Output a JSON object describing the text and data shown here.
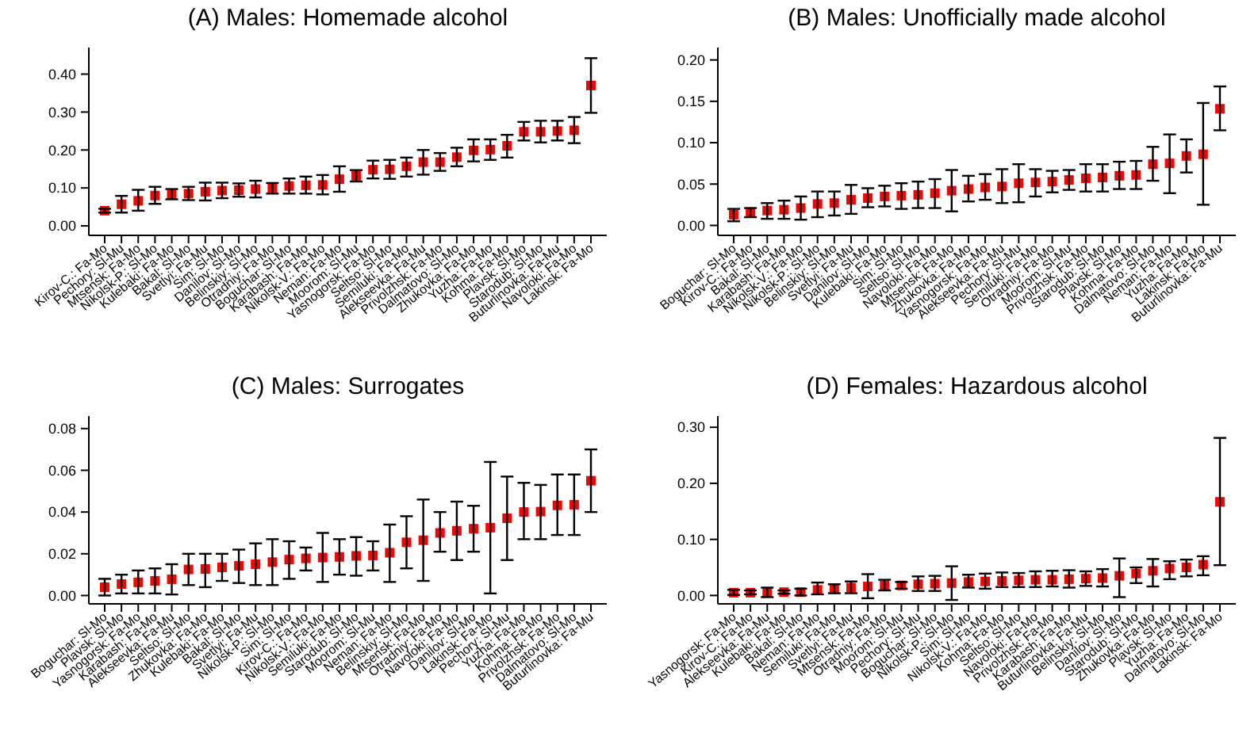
{
  "chart_data": [
    {
      "type": "scatter",
      "title": "(A) Males: Homemade alcohol",
      "marker": "square",
      "color": "#ff0000",
      "categories": [
        "Kirov-C.: Fa-Mo",
        "Pechory: Sl-Mu",
        "Mtsensk: Fa-Mo",
        "Nikolsk-P.: Sl-Mo",
        "Kulebaki: Fa-Mo",
        "Bakal: Sl-Mo",
        "Svetlyi: Fa-Mu",
        "Sim: Sl-Mo",
        "Danilov: Sl-Mo",
        "Belinskiy: Sl-Mo",
        "Otradniy: Fa-Mo",
        "Boguchar: Sl-Mo",
        "Karabash: Fa-Mo",
        "Nikolsk-V.: Fa-Mo",
        "Neman: Fa-Mo",
        "Moorom: Sl-Mu",
        "Yasnogorsk: Fa-Mo",
        "Seltso: Sl-Mo",
        "Semiluki: Fa-Mo",
        "Alekseevka: Fa-Mu",
        "Privolzhsk: Fa-Mo",
        "Dalmatovo: Sl-Mo",
        "Zhukovka: Fa-Mo",
        "Yuzha: Fa-Mo",
        "Kohma: Fa-Mo",
        "Plavsk: Sl-Mo",
        "Starodub: Sl-Mo",
        "Buturlinovka: Fa-Mu",
        "Navoloki: Fa-Mo",
        "Lakinsk: Fa-Mo"
      ],
      "values": [
        0.04,
        0.057,
        0.066,
        0.08,
        0.082,
        0.085,
        0.09,
        0.093,
        0.094,
        0.097,
        0.099,
        0.105,
        0.107,
        0.108,
        0.123,
        0.132,
        0.148,
        0.149,
        0.157,
        0.168,
        0.168,
        0.181,
        0.199,
        0.201,
        0.211,
        0.248,
        0.248,
        0.25,
        0.252,
        0.37
      ],
      "errors": [
        [
          0.035,
          0.045
        ],
        [
          0.035,
          0.079
        ],
        [
          0.04,
          0.095
        ],
        [
          0.058,
          0.103
        ],
        [
          0.07,
          0.097
        ],
        [
          0.068,
          0.103
        ],
        [
          0.067,
          0.114
        ],
        [
          0.073,
          0.114
        ],
        [
          0.077,
          0.112
        ],
        [
          0.075,
          0.119
        ],
        [
          0.085,
          0.113
        ],
        [
          0.085,
          0.125
        ],
        [
          0.085,
          0.13
        ],
        [
          0.083,
          0.134
        ],
        [
          0.09,
          0.157
        ],
        [
          0.117,
          0.147
        ],
        [
          0.125,
          0.172
        ],
        [
          0.124,
          0.174
        ],
        [
          0.13,
          0.18
        ],
        [
          0.135,
          0.2
        ],
        [
          0.145,
          0.192
        ],
        [
          0.157,
          0.206
        ],
        [
          0.17,
          0.228
        ],
        [
          0.174,
          0.228
        ],
        [
          0.18,
          0.24
        ],
        [
          0.225,
          0.274
        ],
        [
          0.22,
          0.277
        ],
        [
          0.225,
          0.277
        ],
        [
          0.218,
          0.287
        ],
        [
          0.298,
          0.442
        ]
      ],
      "ylim": [
        -0.025,
        0.47
      ],
      "yticks": [
        {
          "value": 0,
          "label": "0.00"
        },
        {
          "value": 0.1,
          "label": "0.10"
        },
        {
          "value": 0.2,
          "label": "0.20"
        },
        {
          "value": 0.3,
          "label": "0.30"
        },
        {
          "value": 0.4,
          "label": "0.40"
        }
      ]
    },
    {
      "type": "scatter",
      "title": "(B) Males: Unofficially made alcohol",
      "marker": "square",
      "color": "#ff0000",
      "categories": [
        "Boguchar: Sl-Mo",
        "Kirov-C.: Fa-Mo",
        "Bakal: Sl-Mo",
        "Karabash: Fa-Mo",
        "Nikolsk-V.: Fa-Mo",
        "Nikolsk-P.: Sl-Mo",
        "Belinskiy: Sl-Mo",
        "Svetlyi: Fa-Mu",
        "Danilov: Sl-Mo",
        "Kulebaki: Fa-Mo",
        "Sim: Sl-Mo",
        "Seltso: Sl-Mo",
        "Navoloki: Fa-Mo",
        "Mtsensk: Fa-Mo",
        "Zhukovka: Fa-Mo",
        "Yasnogorsk: Fa-Mo",
        "Alekseevka: Fa-Mu",
        "Pechory: Sl-Mu",
        "Semiluki: Fa-Mo",
        "Otradniy: Fa-Mo",
        "Moorom: Sl-Mu",
        "Privolzhsk: Fa-Mo",
        "Starodub: Sl-Mo",
        "Plavsk: Sl-Mo",
        "Kohma: Fa-Mo",
        "Dalmatovo: Sl-Mo",
        "Neman: Fa-Mo",
        "Yuzha: Fa-Mo",
        "Lakinsk: Fa-Mo",
        "Buturlinovka: Fa-Mu"
      ],
      "values": [
        0.013,
        0.016,
        0.018,
        0.019,
        0.021,
        0.026,
        0.027,
        0.031,
        0.033,
        0.035,
        0.036,
        0.037,
        0.039,
        0.042,
        0.044,
        0.046,
        0.047,
        0.051,
        0.052,
        0.053,
        0.055,
        0.057,
        0.058,
        0.06,
        0.061,
        0.074,
        0.075,
        0.084,
        0.086,
        0.141
      ],
      "errors": [
        [
          0.005,
          0.02
        ],
        [
          0.01,
          0.021
        ],
        [
          0.008,
          0.027
        ],
        [
          0.008,
          0.03
        ],
        [
          0.007,
          0.035
        ],
        [
          0.01,
          0.041
        ],
        [
          0.012,
          0.041
        ],
        [
          0.014,
          0.049
        ],
        [
          0.022,
          0.045
        ],
        [
          0.023,
          0.048
        ],
        [
          0.02,
          0.051
        ],
        [
          0.021,
          0.053
        ],
        [
          0.021,
          0.056
        ],
        [
          0.017,
          0.067
        ],
        [
          0.029,
          0.06
        ],
        [
          0.031,
          0.062
        ],
        [
          0.027,
          0.068
        ],
        [
          0.028,
          0.074
        ],
        [
          0.035,
          0.068
        ],
        [
          0.04,
          0.066
        ],
        [
          0.043,
          0.067
        ],
        [
          0.041,
          0.074
        ],
        [
          0.041,
          0.074
        ],
        [
          0.044,
          0.077
        ],
        [
          0.044,
          0.078
        ],
        [
          0.054,
          0.095
        ],
        [
          0.039,
          0.11
        ],
        [
          0.064,
          0.104
        ],
        [
          0.025,
          0.148
        ],
        [
          0.115,
          0.168
        ]
      ],
      "ylim": [
        -0.012,
        0.215
      ],
      "yticks": [
        {
          "value": 0,
          "label": "0.00"
        },
        {
          "value": 0.05,
          "label": "0.05"
        },
        {
          "value": 0.1,
          "label": "0.10"
        },
        {
          "value": 0.15,
          "label": "0.15"
        },
        {
          "value": 0.2,
          "label": "0.20"
        }
      ]
    },
    {
      "type": "scatter",
      "title": "(C) Males: Surrogates",
      "marker": "square",
      "color": "#ff0000",
      "categories": [
        "Boguchar: Sl-Mo",
        "Plavsk: Sl-Mo",
        "Yasnogorsk: Fa-Mo",
        "Karabash: Fa-Mo",
        "Alekseevka: Fa-Mu",
        "Seltso: Sl-Mo",
        "Zhukovka: Fa-Mo",
        "Kulebaki: Fa-Mo",
        "Bakal: Sl-Mo",
        "Svetlyi: Fa-Mu",
        "Nikolsk-P.: Sl-Mo",
        "Sim: Sl-Mo",
        "Kirov-C.: Fa-Mo",
        "Nikolsk-V.: Fa-Mo",
        "Semiluki: Fa-Mo",
        "Starodub: Sl-Mo",
        "Moorom: Sl-Mu",
        "Neman: Fa-Mo",
        "Belinskiy: Sl-Mo",
        "Mtsensk: Fa-Mo",
        "Otradniy: Fa-Mo",
        "Navoloki: Fa-Mo",
        "Danilov: Sl-Mo",
        "Lakinsk: Fa-Mo",
        "Pechory: Sl-Mu",
        "Yuzha: Fa-Mo",
        "Kohma: Fa-Mo",
        "Privolzhsk: Fa-Mo",
        "Dalmatovo: Sl-Mo",
        "Buturlinovka: Fa-Mu"
      ],
      "values": [
        0.004,
        0.0055,
        0.0063,
        0.007,
        0.0078,
        0.0125,
        0.0127,
        0.0135,
        0.0142,
        0.015,
        0.016,
        0.0172,
        0.0178,
        0.0182,
        0.0185,
        0.019,
        0.0192,
        0.0205,
        0.0255,
        0.0265,
        0.03,
        0.031,
        0.032,
        0.0325,
        0.037,
        0.04,
        0.0402,
        0.0432,
        0.0435,
        0.055
      ],
      "errors": [
        [
          0,
          0.008
        ],
        [
          0.001,
          0.01
        ],
        [
          0.001,
          0.012
        ],
        [
          0.001,
          0.013
        ],
        [
          0.0005,
          0.015
        ],
        [
          0.005,
          0.02
        ],
        [
          0.004,
          0.02
        ],
        [
          0.007,
          0.02
        ],
        [
          0.006,
          0.022
        ],
        [
          0.005,
          0.025
        ],
        [
          0.005,
          0.027
        ],
        [
          0.008,
          0.026
        ],
        [
          0.012,
          0.023
        ],
        [
          0.0065,
          0.03
        ],
        [
          0.01,
          0.027
        ],
        [
          0.0095,
          0.028
        ],
        [
          0.012,
          0.026
        ],
        [
          0.0065,
          0.034
        ],
        [
          0.013,
          0.038
        ],
        [
          0.007,
          0.046
        ],
        [
          0.021,
          0.04
        ],
        [
          0.017,
          0.045
        ],
        [
          0.021,
          0.043
        ],
        [
          0.001,
          0.064
        ],
        [
          0.017,
          0.057
        ],
        [
          0.027,
          0.054
        ],
        [
          0.027,
          0.053
        ],
        [
          0.029,
          0.058
        ],
        [
          0.029,
          0.058
        ],
        [
          0.04,
          0.07
        ]
      ],
      "ylim": [
        -0.004,
        0.086
      ],
      "yticks": [
        {
          "value": 0,
          "label": "0.00"
        },
        {
          "value": 0.02,
          "label": "0.02"
        },
        {
          "value": 0.04,
          "label": "0.04"
        },
        {
          "value": 0.06,
          "label": "0.06"
        },
        {
          "value": 0.08,
          "label": "0.08"
        }
      ]
    },
    {
      "type": "scatter",
      "title": "(D) Females: Hazardous alcohol",
      "marker": "square",
      "color": "#ff0000",
      "categories": [
        "Yasnogorsk: Fa-Mo",
        "Kirov-C.: Fa-Mo",
        "Alekseevka: Fa-Mu",
        "Kulebaki: Fa-Mo",
        "Bakal: Sl-Mo",
        "Neman: Fa-Mo",
        "Semiluki: Fa-Mo",
        "Svetlyi: Fa-Mu",
        "Mtsensk: Fa-Mo",
        "Otradniy: Fa-Mo",
        "Moorom: Sl-Mu",
        "Pechory: Sl-Mu",
        "Boguchar: Sl-Mo",
        "Nikolsk-P.: Sl-Mo",
        "Sim: Sl-Mo",
        "Nikolsk-V.: Fa-Mo",
        "Kohma: Fa-Mo",
        "Seltso: Sl-Mo",
        "Navoloki: Fa-Mo",
        "Privolzhsk: Fa-Mo",
        "Karabash: Fa-Mo",
        "Buturlinovka: Fa-Mu",
        "Belinskiy: Sl-Mo",
        "Danilov: Sl-Mo",
        "Starodub: Sl-Mo",
        "Zhukovka: Fa-Mo",
        "Plavsk: Sl-Mo",
        "Yuzha: Fa-Mo",
        "Dalmatovo: Sl-Mo",
        "Lakinsk: Fa-Mo"
      ],
      "values": [
        0.005,
        0.005,
        0.005,
        0.006,
        0.006,
        0.01,
        0.011,
        0.014,
        0.016,
        0.018,
        0.018,
        0.02,
        0.021,
        0.022,
        0.024,
        0.025,
        0.026,
        0.027,
        0.028,
        0.028,
        0.029,
        0.03,
        0.031,
        0.035,
        0.039,
        0.044,
        0.048,
        0.05,
        0.055,
        0.167
      ],
      "errors": [
        [
          0.001,
          0.01
        ],
        [
          0.002,
          0.009
        ],
        [
          -0.003,
          0.014
        ],
        [
          0.003,
          0.009
        ],
        [
          0,
          0.012
        ],
        [
          0.002,
          0.023
        ],
        [
          0.004,
          0.02
        ],
        [
          0.004,
          0.025
        ],
        [
          -0.005,
          0.038
        ],
        [
          0.009,
          0.028
        ],
        [
          0.012,
          0.024
        ],
        [
          0.008,
          0.034
        ],
        [
          0.008,
          0.035
        ],
        [
          -0.008,
          0.052
        ],
        [
          0.014,
          0.037
        ],
        [
          0.012,
          0.039
        ],
        [
          0.015,
          0.041
        ],
        [
          0.015,
          0.04
        ],
        [
          0.015,
          0.043
        ],
        [
          0.016,
          0.044
        ],
        [
          0.014,
          0.045
        ],
        [
          0.017,
          0.043
        ],
        [
          0.016,
          0.047
        ],
        [
          -0.003,
          0.066
        ],
        [
          0.022,
          0.05
        ],
        [
          0.016,
          0.065
        ],
        [
          0.029,
          0.061
        ],
        [
          0.034,
          0.064
        ],
        [
          0.036,
          0.07
        ],
        [
          0.054,
          0.281
        ]
      ],
      "ylim": [
        -0.015,
        0.32
      ],
      "yticks": [
        {
          "value": 0,
          "label": "0.00"
        },
        {
          "value": 0.1,
          "label": "0.10"
        },
        {
          "value": 0.2,
          "label": "0.20"
        },
        {
          "value": 0.3,
          "label": "0.30"
        }
      ]
    }
  ]
}
